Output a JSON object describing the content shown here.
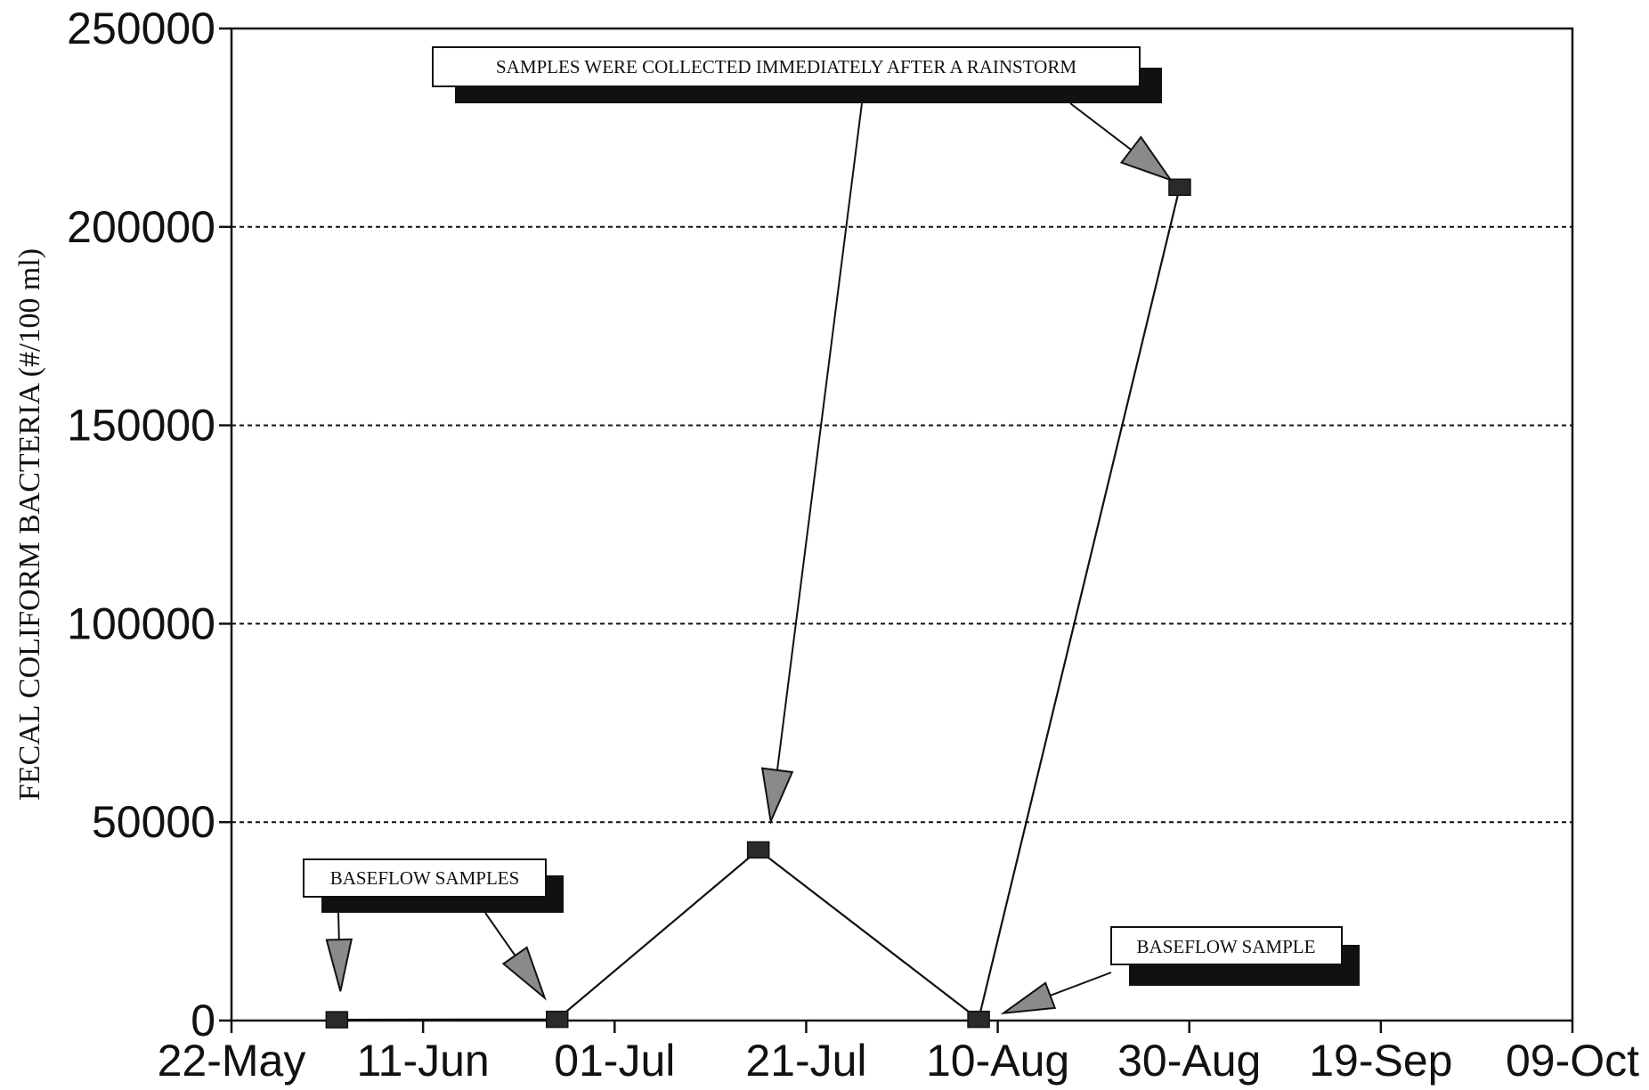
{
  "chart_data": {
    "type": "line",
    "title": "",
    "xlabel": "",
    "ylabel": "FECAL COLIFORM BACTERIA (#/100 ml)",
    "x_tick_labels": [
      "22-May",
      "11-Jun",
      "01-Jul",
      "21-Jul",
      "10-Aug",
      "30-Aug",
      "19-Sep",
      "09-Oct"
    ],
    "x_tick_dates": [
      "05-22",
      "06-11",
      "07-01",
      "07-21",
      "08-10",
      "08-30",
      "09-19",
      "10-09"
    ],
    "xlim": [
      "05-22",
      "10-09"
    ],
    "y_tick_labels": [
      "0",
      "50000",
      "100000",
      "150000",
      "200000",
      "250000"
    ],
    "ylim": [
      0,
      250000
    ],
    "grid": "horizontal dashed",
    "series": [
      {
        "x": [
          "06-02",
          "06-25",
          "07-16",
          "08-08",
          "08-29"
        ],
        "values": [
          200,
          300,
          43000,
          300,
          210000
        ]
      }
    ],
    "annotations": [
      {
        "text": "SAMPLES WERE COLLECTED IMMEDIATELY AFTER A RAINSTORM"
      },
      {
        "text": "BASEFLOW SAMPLES"
      },
      {
        "text": "BASEFLOW SAMPLE"
      }
    ]
  }
}
